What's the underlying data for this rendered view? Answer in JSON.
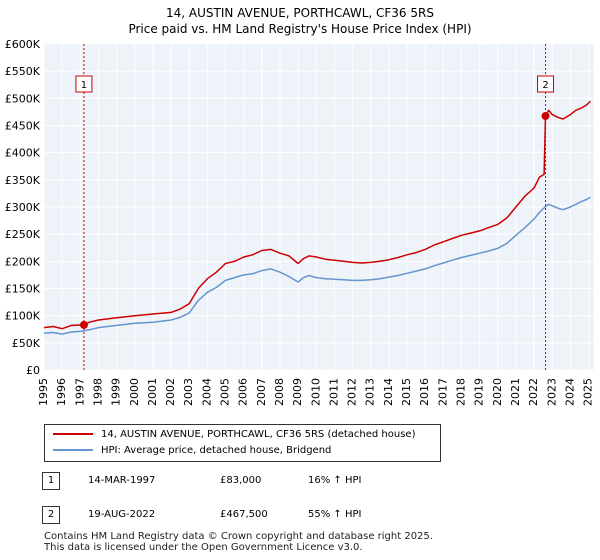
{
  "title": {
    "line1": "14, AUSTIN AVENUE, PORTHCAWL, CF36 5RS",
    "line2": "Price paid vs. HM Land Registry's House Price Index (HPI)"
  },
  "chart_data": {
    "type": "line",
    "ylim": [
      0,
      600000
    ],
    "xlim": [
      1995,
      2025.3
    ],
    "yticks": [
      {
        "value": 0,
        "label": "£0"
      },
      {
        "value": 50000,
        "label": "£50K"
      },
      {
        "value": 100000,
        "label": "£100K"
      },
      {
        "value": 150000,
        "label": "£150K"
      },
      {
        "value": 200000,
        "label": "£200K"
      },
      {
        "value": 250000,
        "label": "£250K"
      },
      {
        "value": 300000,
        "label": "£300K"
      },
      {
        "value": 350000,
        "label": "£350K"
      },
      {
        "value": 400000,
        "label": "£400K"
      },
      {
        "value": 450000,
        "label": "£450K"
      },
      {
        "value": 500000,
        "label": "£500K"
      },
      {
        "value": 550000,
        "label": "£550K"
      },
      {
        "value": 600000,
        "label": "£600K"
      }
    ],
    "xticks": [
      "1995",
      "1996",
      "1997",
      "1998",
      "1999",
      "2000",
      "2001",
      "2002",
      "2003",
      "2004",
      "2005",
      "2006",
      "2007",
      "2008",
      "2009",
      "2010",
      "2011",
      "2012",
      "2013",
      "2014",
      "2015",
      "2016",
      "2017",
      "2018",
      "2019",
      "2020",
      "2021",
      "2022",
      "2023",
      "2024",
      "2025"
    ],
    "grid": true,
    "series": [
      {
        "name": "14, AUSTIN AVENUE, PORTHCAWL, CF36 5RS (detached house)",
        "color": "#cc0000",
        "x": [
          1995.0,
          1995.5,
          1996.0,
          1996.5,
          1997.2,
          1997.5,
          1998.0,
          1999.0,
          2000.0,
          2001.0,
          2002.0,
          2002.5,
          2003.0,
          2003.5,
          2004.0,
          2004.5,
          2005.0,
          2005.5,
          2006.0,
          2006.5,
          2007.0,
          2007.5,
          2008.0,
          2008.5,
          2009.0,
          2009.3,
          2009.6,
          2010.0,
          2010.5,
          2011.0,
          2011.5,
          2012.0,
          2012.5,
          2013.0,
          2013.5,
          2014.0,
          2014.5,
          2015.0,
          2015.5,
          2016.0,
          2016.5,
          2017.0,
          2017.5,
          2018.0,
          2018.5,
          2019.0,
          2019.5,
          2020.0,
          2020.5,
          2021.0,
          2021.5,
          2022.0,
          2022.3,
          2022.55,
          2022.63,
          2022.8,
          2023.0,
          2023.3,
          2023.6,
          2024.0,
          2024.3,
          2024.6,
          2024.9,
          2025.1
        ],
        "y": [
          78000,
          80000,
          76000,
          82000,
          83000,
          88000,
          92000,
          96000,
          100000,
          103000,
          106000,
          112000,
          122000,
          150000,
          168000,
          180000,
          196000,
          200000,
          208000,
          212000,
          220000,
          222000,
          215000,
          210000,
          196000,
          205000,
          210000,
          208000,
          204000,
          202000,
          200000,
          198000,
          197000,
          198000,
          200000,
          203000,
          207000,
          212000,
          216000,
          222000,
          230000,
          236000,
          242000,
          248000,
          252000,
          256000,
          262000,
          268000,
          280000,
          300000,
          320000,
          335000,
          355000,
          360000,
          467500,
          478000,
          470000,
          465000,
          462000,
          470000,
          478000,
          482000,
          488000,
          495000
        ]
      },
      {
        "name": "HPI: Average price, detached house, Bridgend",
        "color": "#6495d0",
        "x": [
          1995.0,
          1995.5,
          1996.0,
          1996.5,
          1997.0,
          1997.5,
          1998.0,
          1999.0,
          2000.0,
          2001.0,
          2002.0,
          2002.5,
          2003.0,
          2003.5,
          2004.0,
          2004.5,
          2005.0,
          2005.5,
          2006.0,
          2006.5,
          2007.0,
          2007.5,
          2008.0,
          2008.5,
          2009.0,
          2009.3,
          2009.6,
          2010.0,
          2010.5,
          2011.0,
          2011.5,
          2012.0,
          2012.5,
          2013.0,
          2013.5,
          2014.0,
          2014.5,
          2015.0,
          2015.5,
          2016.0,
          2016.5,
          2017.0,
          2017.5,
          2018.0,
          2018.5,
          2019.0,
          2019.5,
          2020.0,
          2020.5,
          2021.0,
          2021.5,
          2022.0,
          2022.3,
          2022.6,
          2022.8,
          2023.0,
          2023.3,
          2023.6,
          2024.0,
          2024.3,
          2024.6,
          2024.9,
          2025.1
        ],
        "y": [
          68000,
          69000,
          66000,
          70000,
          71000,
          74000,
          78000,
          82000,
          86000,
          88000,
          92000,
          97000,
          105000,
          128000,
          143000,
          152000,
          165000,
          170000,
          175000,
          177000,
          183000,
          186000,
          180000,
          172000,
          162000,
          170000,
          174000,
          170000,
          168000,
          167000,
          166000,
          165000,
          165000,
          166000,
          168000,
          171000,
          174000,
          178000,
          182000,
          186000,
          192000,
          197000,
          202000,
          207000,
          211000,
          215000,
          219000,
          224000,
          233000,
          248000,
          262000,
          278000,
          290000,
          300000,
          305000,
          302000,
          298000,
          295000,
          300000,
          305000,
          310000,
          314000,
          318000
        ]
      }
    ],
    "sales": [
      {
        "label": "1",
        "x": 1997.2,
        "y": 83000
      },
      {
        "label": "2",
        "x": 2022.63,
        "y": 467500
      }
    ]
  },
  "legend": {
    "property_label": "14, AUSTIN AVENUE, PORTHCAWL, CF36 5RS (detached house)",
    "hpi_label": "HPI: Average price, detached house, Bridgend"
  },
  "sales_table": [
    {
      "num": "1",
      "date": "14-MAR-1997",
      "price": "£83,000",
      "hpi": "16% ↑ HPI"
    },
    {
      "num": "2",
      "date": "19-AUG-2022",
      "price": "£467,500",
      "hpi": "55% ↑ HPI"
    }
  ],
  "footer": {
    "line1": "Contains HM Land Registry data © Crown copyright and database right 2025.",
    "line2": "This data is licensed under the Open Government Licence v3.0."
  },
  "colors": {
    "property": "#cc0000",
    "hpi": "#6495d0",
    "plot_bg": "#eef3fa",
    "sale_line": "#cc0000"
  }
}
